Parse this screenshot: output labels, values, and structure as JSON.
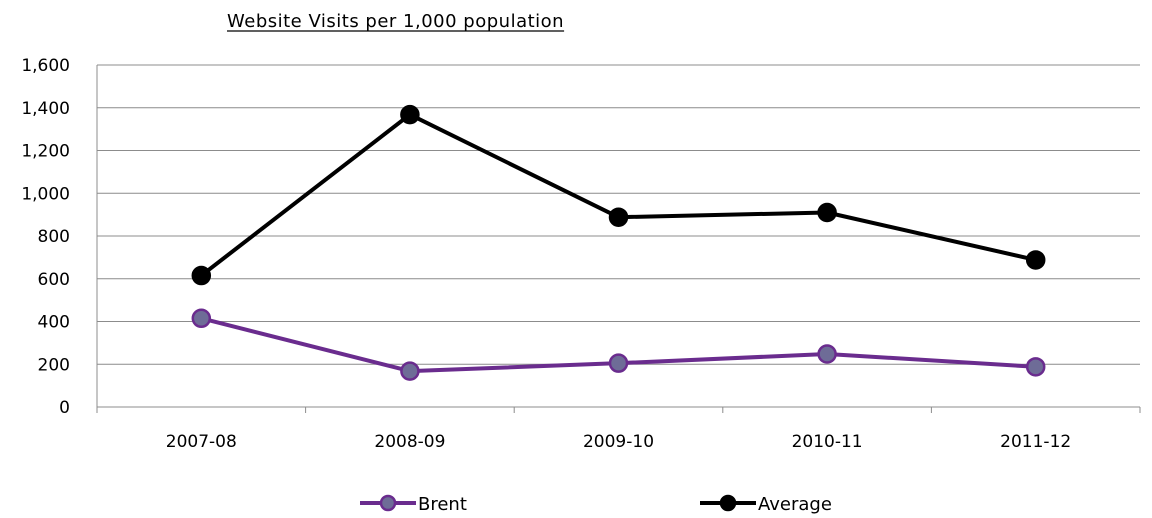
{
  "chart_data": {
    "type": "line",
    "title": "Website Visits per 1,000 population",
    "categories": [
      "2007-08",
      "2008-09",
      "2009-10",
      "2010-11",
      "2011-12"
    ],
    "ylim": [
      0,
      1600
    ],
    "yticks": [
      0,
      200,
      400,
      600,
      800,
      1000,
      1200,
      1400,
      1600
    ],
    "ytick_labels": [
      "0",
      "200",
      "400",
      "600",
      "800",
      "1,000",
      "1,200",
      "1,400",
      "1,600"
    ],
    "grid": true,
    "legend": "bottom",
    "series": [
      {
        "name": "Brent",
        "values": [
          415,
          168,
          205,
          248,
          188
        ],
        "line_color": "#6a2c8e",
        "marker_fill": "#6e6c97",
        "marker_stroke": "#6a2c8e"
      },
      {
        "name": "Average",
        "values": [
          615,
          1368,
          888,
          910,
          688
        ],
        "line_color": "#000000",
        "marker_fill": "#000000",
        "marker_stroke": "#000000"
      }
    ]
  }
}
